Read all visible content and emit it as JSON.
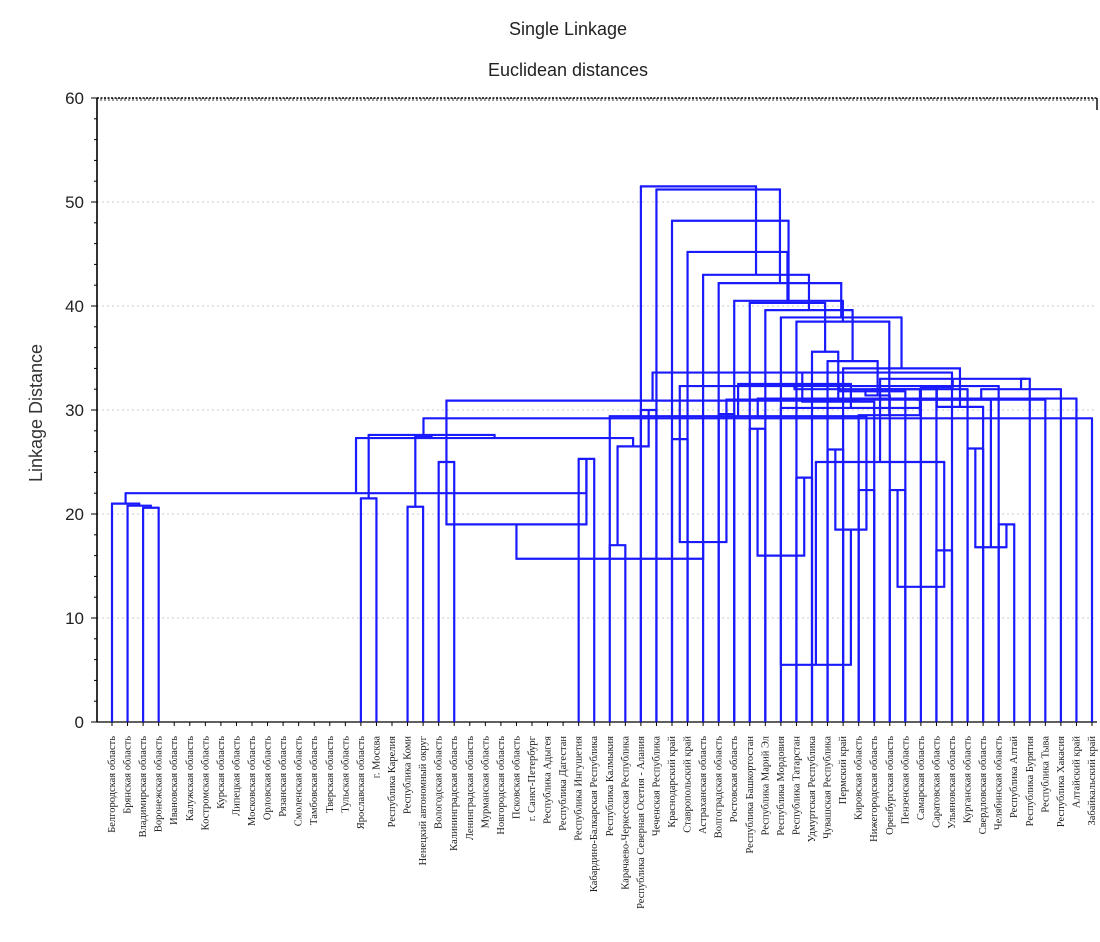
{
  "chart_data": {
    "type": "dendrogram",
    "title": "Single Linkage",
    "subtitle": "Euclidean distances",
    "ylabel": "Linkage Distance",
    "xlabel": "",
    "ylim": [
      0,
      60
    ],
    "yticks": [
      0,
      10,
      20,
      30,
      40,
      50,
      60
    ],
    "grid": true,
    "line_color": "#1a1aff",
    "leaves": [
      "Белгородская область",
      "Брянская область",
      "Владимирская область",
      "Воронежская область",
      "Ивановская область",
      "Калужская область",
      "Костромская область",
      "Курская область",
      "Липецкая область",
      "Московская область",
      "Орловская область",
      "Рязанская область",
      "Смоленская область",
      "Тамбовская область",
      "Тверская область",
      "Тульская область",
      "Ярославская область",
      "г. Москва",
      "Республика Карелия",
      "Республика Коми",
      "Ненецкий автономный округ",
      "Вологодская область",
      "Калининградская область",
      "Ленинградская область",
      "Мурманская область",
      "Новгородская область",
      "Псковская область",
      "г. Санкт-Петербург",
      "Республика Адыгея",
      "Республика Дагестан",
      "Республика Ингушетия",
      "Кабардино-Балкарская Республика",
      "Республика Калмыкия",
      "Карачаево-Черкесская Республика",
      "Республика Северная Осетия - Алания",
      "Чеченская Республика",
      "Краснодарский край",
      "Ставропольский край",
      "Астраханская область",
      "Волгоградская область",
      "Ростовская область",
      "Республика Башкортостан",
      "Республика Марий Эл",
      "Республика Мордовия",
      "Республика Татарстан",
      "Удмуртская Республика",
      "Чувашская Республика",
      "Пермский край",
      "Кировская область",
      "Нижегородская область",
      "Оренбургская область",
      "Пензенская область",
      "Самарская область",
      "Саратовская область",
      "Ульяновская область",
      "Курганская область",
      "Свердловская область",
      "Челябинская область",
      "Республика Алтай",
      "Республика Бурятия",
      "Республика Тыва",
      "Республика Хакасия",
      "Алтайский край",
      "Забайкальский край"
    ],
    "merges": [
      {
        "a": 16,
        "b": 17,
        "h": 21.5
      },
      {
        "a": 19,
        "b": 20,
        "h": 20.7
      },
      {
        "a": 21,
        "b": 22,
        "h": 25.0
      },
      {
        "a": 30,
        "b": 31,
        "h": 25.3
      },
      {
        "a": 32,
        "b": 33,
        "h": 17.0
      },
      {
        "a": 34,
        "b": 35,
        "h": 30.0
      },
      {
        "a": 36,
        "b": 37,
        "h": 27.2
      },
      {
        "a": 39,
        "b": 40,
        "h": 29.6
      },
      {
        "a": 41,
        "b": 42,
        "h": 28.2
      },
      {
        "a": 44,
        "b": 45,
        "h": 23.5
      },
      {
        "a": 46,
        "b": 47,
        "h": 26.2
      },
      {
        "a": 48,
        "b": 49,
        "h": 22.3
      },
      {
        "a": 50,
        "b": 51,
        "h": 22.3
      },
      {
        "a": 53,
        "b": 54,
        "h": 16.5
      },
      {
        "a": 55,
        "b": 56,
        "h": 26.3
      },
      {
        "a": 57,
        "b": 58,
        "h": 19.0
      },
      {
        "a": 66,
        "b": 67,
        "h": 19.0
      },
      {
        "a": 70,
        "b": 71,
        "h": 17.3
      },
      {
        "a": 72,
        "b": 73,
        "h": 16.0
      },
      {
        "a": 74,
        "b": 75,
        "h": 18.5
      },
      {
        "a": 76,
        "b": 77,
        "h": 13.0
      },
      {
        "a": 78,
        "b": 79,
        "h": 16.8
      },
      {
        "a": 80,
        "b": 81,
        "h": 15.7
      },
      {
        "a": 82,
        "b": 83,
        "h": 5.5
      },
      {
        "a": 2,
        "b": 3,
        "h": 20.6
      },
      {
        "a": 88,
        "b": 1,
        "h": 20.8
      },
      {
        "a": 89,
        "b": 0,
        "h": 21.0
      },
      {
        "a": 90,
        "b": 67,
        "h": 22.0
      },
      {
        "a": 68,
        "b": 69,
        "h": 26.5
      },
      {
        "a": 91,
        "b": 92,
        "h": 27.3
      },
      {
        "a": 93,
        "b": 64,
        "h": 27.6
      },
      {
        "a": 94,
        "b": 65,
        "h": 27.5
      },
      {
        "a": 95,
        "b": 63,
        "h": 29.2
      },
      {
        "a": 96,
        "b": 62,
        "h": 31.1
      },
      {
        "a": 97,
        "b": 60,
        "h": 31.0
      },
      {
        "a": 61,
        "b": 98,
        "h": 32.0
      },
      {
        "a": 99,
        "b": 59,
        "h": 33.0
      },
      {
        "a": 75,
        "b": 86,
        "h": 29.4
      },
      {
        "a": 77,
        "b": 87,
        "h": 25.0
      },
      {
        "a": 82,
        "b": 84,
        "h": 30.2
      },
      {
        "a": 71,
        "b": 85,
        "h": 31.0
      },
      {
        "a": 70,
        "b": 57,
        "h": 32.3
      },
      {
        "a": 102,
        "b": 100,
        "h": 33.0
      },
      {
        "a": 103,
        "b": 101,
        "h": 32.5
      },
      {
        "a": 104,
        "b": 66,
        "h": 30.9
      },
      {
        "a": 105,
        "b": 51,
        "h": 31.8
      },
      {
        "a": 106,
        "b": 52,
        "h": 32.2
      },
      {
        "a": 107,
        "b": 53,
        "h": 32.0
      },
      {
        "a": 108,
        "b": 54,
        "h": 33.6
      },
      {
        "a": 109,
        "b": 55,
        "h": 32.0
      },
      {
        "a": 110,
        "b": 56,
        "h": 30.3
      },
      {
        "a": 111,
        "b": 50,
        "h": 31.4
      },
      {
        "a": 112,
        "b": 49,
        "h": 30.8
      },
      {
        "a": 113,
        "b": 48,
        "h": 29.5
      },
      {
        "a": 114,
        "b": 47,
        "h": 34.0
      },
      {
        "a": 115,
        "b": 46,
        "h": 34.7
      },
      {
        "a": 116,
        "b": 45,
        "h": 35.6
      },
      {
        "a": 117,
        "b": 44,
        "h": 38.5
      },
      {
        "a": 118,
        "b": 43,
        "h": 38.9
      },
      {
        "a": 119,
        "b": 42,
        "h": 39.6
      },
      {
        "a": 120,
        "b": 41,
        "h": 40.3
      },
      {
        "a": 121,
        "b": 40,
        "h": 40.5
      },
      {
        "a": 122,
        "b": 39,
        "h": 42.2
      },
      {
        "a": 123,
        "b": 38,
        "h": 43.0
      },
      {
        "a": 124,
        "b": 37,
        "h": 45.2
      },
      {
        "a": 125,
        "b": 36,
        "h": 48.2
      },
      {
        "a": 126,
        "b": 35,
        "h": 51.2
      },
      {
        "a": 127,
        "b": 34,
        "h": 51.5
      }
    ]
  }
}
